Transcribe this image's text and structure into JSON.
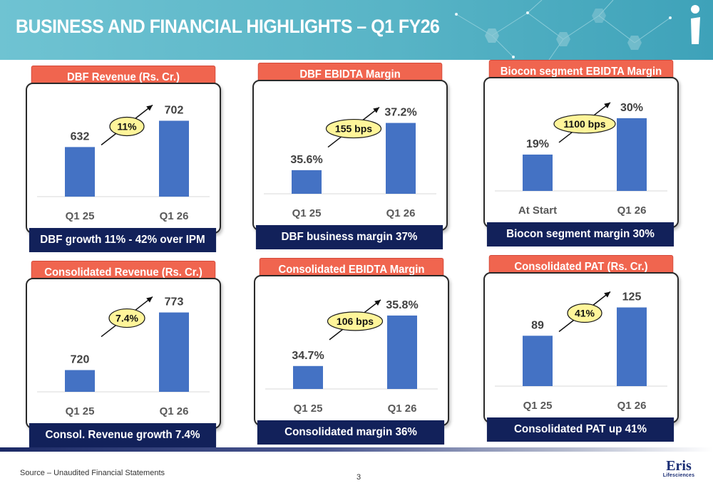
{
  "header": {
    "title": "BUSINESS AND FINANCIAL HIGHLIGHTS – Q1 FY26"
  },
  "colors": {
    "accent": "#f0654f",
    "bar": "#4472c4",
    "footer_bar": "#12215a",
    "bubble": "#fff59a"
  },
  "panels": [
    {
      "title": "DBF Revenue (Rs. Cr.)",
      "footer": "DBF growth 11% - 42% over IPM",
      "bubble": "11%",
      "categories": [
        "Q1 25",
        "Q1 26"
      ],
      "value_labels": [
        "632",
        "702"
      ]
    },
    {
      "title": "DBF EBIDTA Margin",
      "footer": "DBF business margin 37%",
      "bubble": "155 bps",
      "categories": [
        "Q1 25",
        "Q1 26"
      ],
      "value_labels": [
        "35.6%",
        "37.2%"
      ]
    },
    {
      "title": "Biocon segment EBIDTA Margin",
      "footer": "Biocon segment margin 30%",
      "bubble": "1100 bps",
      "categories": [
        "At Start",
        "Q1 26"
      ],
      "value_labels": [
        "19%",
        "30%"
      ]
    },
    {
      "title": "Consolidated Revenue (Rs. Cr.)",
      "footer": "Consol. Revenue growth 7.4%",
      "bubble": "7.4%",
      "categories": [
        "Q1 25",
        "Q1 26"
      ],
      "value_labels": [
        "720",
        "773"
      ]
    },
    {
      "title": "Consolidated EBIDTA Margin",
      "footer": "Consolidated margin 36%",
      "bubble": "106 bps",
      "categories": [
        "Q1 25",
        "Q1 26"
      ],
      "value_labels": [
        "34.7%",
        "35.8%"
      ]
    },
    {
      "title": "Consolidated PAT (Rs. Cr.)",
      "footer": "Consolidated PAT up 41%",
      "bubble": "41%",
      "categories": [
        "Q1 25",
        "Q1 26"
      ],
      "value_labels": [
        "89",
        "125"
      ]
    }
  ],
  "chart_data": [
    {
      "type": "bar",
      "title": "DBF Revenue (Rs. Cr.)",
      "categories": [
        "Q1 25",
        "Q1 26"
      ],
      "values": [
        632,
        702
      ],
      "ylim": [
        500,
        720
      ]
    },
    {
      "type": "bar",
      "title": "DBF EBIDTA Margin",
      "categories": [
        "Q1 25",
        "Q1 26"
      ],
      "values": [
        35.6,
        37.2
      ],
      "ylim": [
        34.8,
        37.6
      ]
    },
    {
      "type": "bar",
      "title": "Biocon segment EBIDTA Margin",
      "categories": [
        "At Start",
        "Q1 26"
      ],
      "values": [
        19,
        30
      ],
      "ylim": [
        8,
        33
      ]
    },
    {
      "type": "bar",
      "title": "Consolidated Revenue (Rs. Cr.)",
      "categories": [
        "Q1 25",
        "Q1 26"
      ],
      "values": [
        720,
        773
      ],
      "ylim": [
        700,
        776
      ]
    },
    {
      "type": "bar",
      "title": "Consolidated EBIDTA Margin",
      "categories": [
        "Q1 25",
        "Q1 26"
      ],
      "values": [
        34.7,
        35.8
      ],
      "ylim": [
        34.2,
        36.0
      ]
    },
    {
      "type": "bar",
      "title": "Consolidated PAT (Rs. Cr.)",
      "categories": [
        "Q1 25",
        "Q1 26"
      ],
      "values": [
        89,
        125
      ],
      "ylim": [
        25,
        130
      ]
    }
  ],
  "footer": {
    "source": "Source – Unaudited Financial Statements",
    "page_number": "3",
    "brand_name": "Eris",
    "brand_sub": "Lifesciences"
  }
}
